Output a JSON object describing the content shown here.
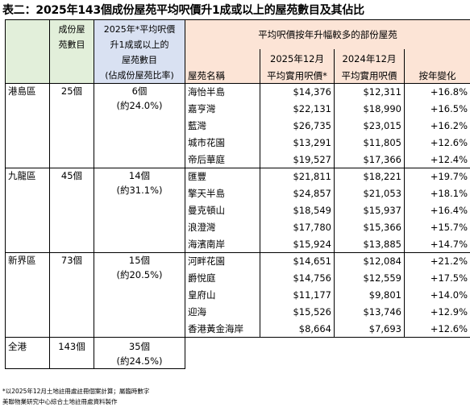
{
  "title": "表二：2025年143個成份屋苑平均呎價升1成或以上的屋苑數目及其佔比",
  "headers": {
    "count": "成份屋苑數目",
    "up10_line1": "2025年*平均呎價",
    "up10_line2": "升1成或以上的",
    "up10_line3": "屋苑數目",
    "up10_line4": "(佔成份屋苑比率)",
    "group": "平均呎價按年升幅較多的部份屋苑",
    "estate": "屋苑名稱",
    "dec2025_line1": "2025年12月",
    "dec2025_line2": "平均實用呎價*",
    "dec2024_line1": "2024年12月",
    "dec2024_line2": "平均實用呎價",
    "yoy": "按年變化"
  },
  "regions": [
    {
      "name": "港島區",
      "count": "25個",
      "up_count": "6個",
      "up_ratio": "(約24.0%)",
      "estates": [
        {
          "name": "海怡半島",
          "p2025": "$14,376",
          "p2024": "$12,311",
          "chg": "+16.8%"
        },
        {
          "name": "嘉亨灣",
          "p2025": "$22,131",
          "p2024": "$18,990",
          "chg": "+16.5%"
        },
        {
          "name": "藍灣",
          "p2025": "$26,735",
          "p2024": "$23,015",
          "chg": "+16.2%"
        },
        {
          "name": "城市花園",
          "p2025": "$13,291",
          "p2024": "$11,805",
          "chg": "+12.6%"
        },
        {
          "name": "帝后華庭",
          "p2025": "$19,527",
          "p2024": "$17,366",
          "chg": "+12.4%"
        }
      ]
    },
    {
      "name": "九龍區",
      "count": "45個",
      "up_count": "14個",
      "up_ratio": "(約31.1%)",
      "estates": [
        {
          "name": "匯豐",
          "p2025": "$21,811",
          "p2024": "$18,221",
          "chg": "+19.7%"
        },
        {
          "name": "擎天半島",
          "p2025": "$24,857",
          "p2024": "$21,053",
          "chg": "+18.1%"
        },
        {
          "name": "曼克頓山",
          "p2025": "$18,549",
          "p2024": "$15,937",
          "chg": "+16.4%"
        },
        {
          "name": "浪澄灣",
          "p2025": "$17,780",
          "p2024": "$15,366",
          "chg": "+15.7%"
        },
        {
          "name": "海濱南岸",
          "p2025": "$15,924",
          "p2024": "$13,885",
          "chg": "+14.7%"
        }
      ]
    },
    {
      "name": "新界區",
      "count": "73個",
      "up_count": "15個",
      "up_ratio": "(約20.5%)",
      "estates": [
        {
          "name": "河畔花園",
          "p2025": "$14,651",
          "p2024": "$12,084",
          "chg": "+21.2%"
        },
        {
          "name": "爵悅庭",
          "p2025": "$14,756",
          "p2024": "$12,559",
          "chg": "+17.5%"
        },
        {
          "name": "皇府山",
          "p2025": "$11,177",
          "p2024": "$9,801",
          "chg": "+14.0%"
        },
        {
          "name": "迎海",
          "p2025": "$15,526",
          "p2024": "$13,746",
          "chg": "+12.9%"
        },
        {
          "name": "香港黃金海岸",
          "p2025": "$8,664",
          "p2024": "$7,693",
          "chg": "+12.6%"
        }
      ]
    }
  ],
  "total": {
    "name": "全港",
    "count": "143個",
    "up_count": "35個",
    "up_ratio": "(約24.5%)"
  },
  "footnotes": [
    "*以2025年12月土地註冊處註冊個案計算；屬臨時數字",
    "美聯物業研究中心綜合土地註冊處資料製作"
  ]
}
